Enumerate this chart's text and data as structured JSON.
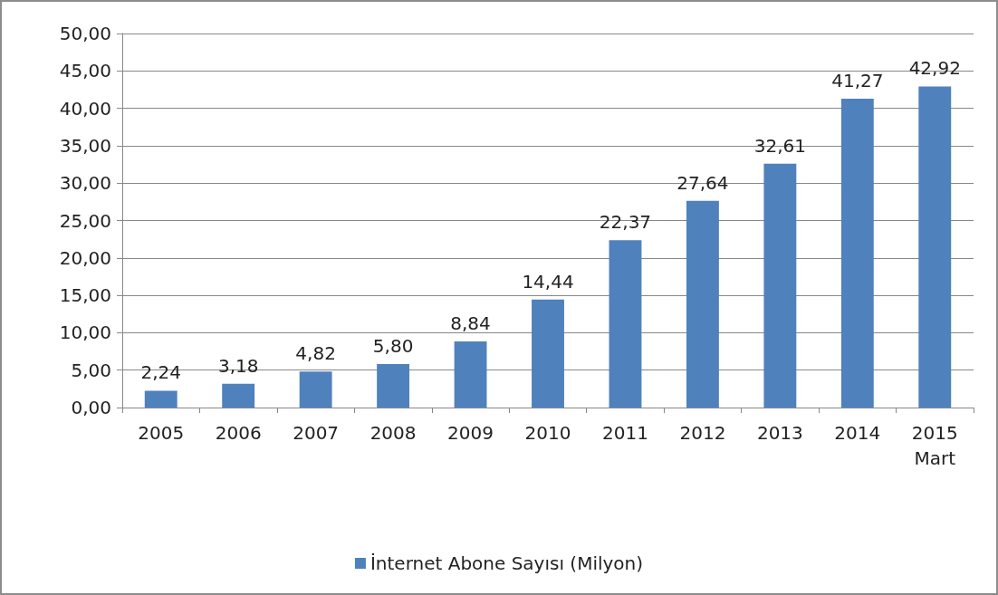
{
  "chart_data": {
    "type": "bar",
    "categories": [
      "2005",
      "2006",
      "2007",
      "2008",
      "2009",
      "2010",
      "2011",
      "2012",
      "2013",
      "2014",
      "2015\nMart"
    ],
    "series": [
      {
        "name": "İnternet Abone Sayısı (Milyon)",
        "color": "#4f81bd",
        "values": [
          2.24,
          3.18,
          4.82,
          5.8,
          8.84,
          14.44,
          22.37,
          27.64,
          32.61,
          41.27,
          42.92
        ],
        "value_labels": [
          "2,24",
          "3,18",
          "4,82",
          "5,80",
          "8,84",
          "14,44",
          "22,37",
          "27,64",
          "32,61",
          "41,27",
          "42,92"
        ]
      }
    ],
    "ylim": [
      0,
      50
    ],
    "yticks": [
      {
        "value": 0,
        "label": "0,00"
      },
      {
        "value": 5,
        "label": "5,00"
      },
      {
        "value": 10,
        "label": "10,00"
      },
      {
        "value": 15,
        "label": "15,00"
      },
      {
        "value": 20,
        "label": "20,00"
      },
      {
        "value": 25,
        "label": "25,00"
      },
      {
        "value": 30,
        "label": "30,00"
      },
      {
        "value": 35,
        "label": "35,00"
      },
      {
        "value": 40,
        "label": "40,00"
      },
      {
        "value": 45,
        "label": "45,00"
      },
      {
        "value": 50,
        "label": "50,00"
      }
    ],
    "grid": "y",
    "legend": "bottom"
  }
}
